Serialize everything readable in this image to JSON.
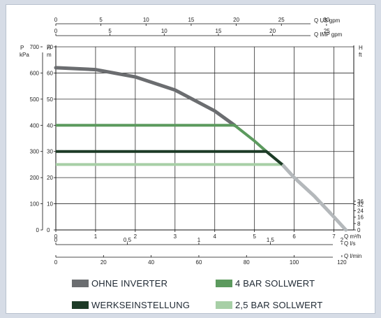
{
  "chart_data": {
    "type": "line",
    "colors": {
      "ohne_inverter": "#6b6d70",
      "bar4": "#5c9a5e",
      "werkseinstellung": "#1d3b27",
      "bar25": "#a7cfa6",
      "curve_tail": "#b4b8bb"
    },
    "axes": {
      "bottom_primary": {
        "label": "Q m³/h",
        "range": [
          0,
          7.5
        ],
        "ticks": [
          0,
          1,
          2,
          3,
          4,
          5,
          6,
          7
        ],
        "tick_labels": [
          "0",
          "1",
          "2",
          "3",
          "4",
          "5",
          "6",
          "7"
        ]
      },
      "bottom_ls": {
        "label": "Q l/s",
        "ticks": [
          0,
          0.5,
          1,
          1.5,
          2
        ],
        "tick_labels": [
          "0",
          "0,5",
          "1",
          "1,5",
          "2"
        ]
      },
      "bottom_lmin": {
        "label": "Q l/min",
        "ticks": [
          0,
          20,
          40,
          60,
          80,
          100,
          120
        ],
        "tick_labels": [
          "0",
          "20",
          "40",
          "60",
          "80",
          "100",
          "120"
        ]
      },
      "top_us": {
        "label": "Q US gpm",
        "ticks": [
          0,
          5,
          10,
          15,
          20,
          25,
          30
        ],
        "tick_labels": [
          "0",
          "5",
          "10",
          "15",
          "20",
          "25",
          "30"
        ]
      },
      "top_imp": {
        "label": "Q IMP gpm",
        "ticks": [
          0,
          5,
          10,
          15,
          20,
          25
        ],
        "tick_labels": [
          "0",
          "5",
          "10",
          "15",
          "20",
          "25"
        ]
      },
      "left_kpa": {
        "label_top": "P",
        "label_unit": "kPa",
        "ticks": [
          0,
          100,
          200,
          300,
          400,
          500,
          600,
          700
        ],
        "tick_labels": [
          "0",
          "100",
          "200",
          "300",
          "400",
          "500",
          "600",
          "700"
        ]
      },
      "left_m": {
        "label_top": "H",
        "label_unit": "m",
        "range": [
          0,
          70
        ],
        "ticks": [
          0,
          10,
          20,
          30,
          40,
          50,
          60,
          70
        ],
        "tick_labels": [
          "0",
          "10",
          "20",
          "30",
          "40",
          "50",
          "60",
          "70"
        ]
      },
      "right_ft": {
        "label_top": "H",
        "label_unit": "ft",
        "ticks": [
          0,
          8,
          16,
          24,
          32,
          36
        ],
        "tick_labels": [
          "0",
          "8",
          "16",
          "24",
          "32",
          "36"
        ]
      }
    },
    "grid": true,
    "series": [
      {
        "name": "OHNE INVERTER",
        "points": [
          [
            0,
            62
          ],
          [
            1,
            61.3
          ],
          [
            2,
            58.5
          ],
          [
            3,
            53.5
          ],
          [
            4,
            45.5
          ],
          [
            4.5,
            40
          ],
          [
            5,
            34
          ],
          [
            5.3,
            30
          ],
          [
            5.7,
            25
          ],
          [
            6,
            20
          ],
          [
            6.5,
            13
          ],
          [
            7,
            5
          ],
          [
            7.3,
            0
          ]
        ]
      },
      {
        "name": "4 BAR SOLLWERT",
        "points": [
          [
            0,
            40
          ],
          [
            4.5,
            40
          ],
          [
            5,
            34
          ],
          [
            5.3,
            30
          ],
          [
            5.7,
            25
          ]
        ]
      },
      {
        "name": "WERKSEINSTELLUNG",
        "points": [
          [
            0,
            30
          ],
          [
            5.3,
            30
          ],
          [
            5.7,
            25
          ]
        ]
      },
      {
        "name": "2,5 BAR SOLLWERT",
        "points": [
          [
            0,
            25
          ],
          [
            5.7,
            25
          ]
        ]
      }
    ],
    "legend": [
      {
        "label": "OHNE INVERTER",
        "color": "#6b6d70"
      },
      {
        "label": "4 BAR SOLLWERT",
        "color": "#5c9a5e"
      },
      {
        "label": "WERKSEINSTELLUNG",
        "color": "#1d3b27"
      },
      {
        "label": "2,5 BAR SOLLWERT",
        "color": "#a7cfa6"
      }
    ]
  }
}
